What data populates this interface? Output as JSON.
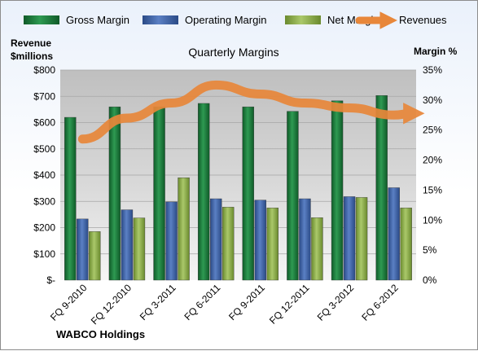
{
  "chart_data": {
    "type": "bar",
    "title": "Quarterly Margins",
    "company": "WABCO Holdings",
    "categories": [
      "FQ 9-2010",
      "FQ 12-2010",
      "FQ 3-2011",
      "FQ 6-2011",
      "FQ 9-2011",
      "FQ 12-2011",
      "FQ 3-2012",
      "FQ 6-2012"
    ],
    "left_axis": {
      "title_line1": "Revenue",
      "title_line2": "$millions",
      "ticks": [
        "$-",
        "$100",
        "$200",
        "$300",
        "$400",
        "$500",
        "$600",
        "$700",
        "$800"
      ],
      "ylim": [
        0,
        800
      ]
    },
    "right_axis": {
      "title": "Margin %",
      "ticks": [
        "0%",
        "5%",
        "10%",
        "15%",
        "20%",
        "25%",
        "30%",
        "35%"
      ],
      "ylim": [
        0,
        35
      ]
    },
    "series": [
      {
        "name": "Gross Margin",
        "axis": "left",
        "values": [
          620,
          660,
          660,
          673,
          660,
          643,
          683,
          703
        ]
      },
      {
        "name": "Operating Margin",
        "axis": "left",
        "values": [
          233,
          268,
          298,
          310,
          305,
          310,
          318,
          352
        ]
      },
      {
        "name": "Net Margin",
        "axis": "left",
        "values": [
          185,
          237,
          390,
          278,
          275,
          238,
          315,
          275
        ]
      },
      {
        "name": "Revenues",
        "axis": "right",
        "type": "line",
        "values": [
          23.5,
          27.0,
          29.5,
          32.5,
          31.0,
          29.5,
          28.7,
          27.5
        ]
      }
    ],
    "colors": {
      "gross": "#1e7a3c",
      "operating": "#3f62a8",
      "net": "#8dae4a",
      "revenue": "#e8873a",
      "plot_top": "#c8c8c8",
      "plot_bottom": "#f2f2f2"
    },
    "grid": true,
    "legend_position": "top"
  }
}
